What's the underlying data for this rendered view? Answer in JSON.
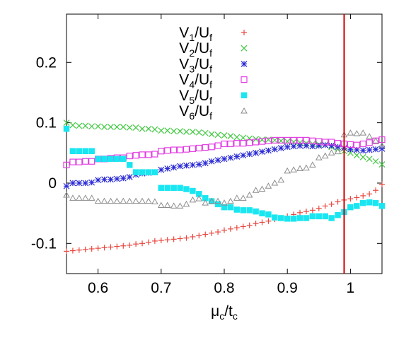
{
  "chart_data": {
    "type": "scatter",
    "title": "",
    "xlabel": {
      "main": "μ",
      "sub1": "c",
      "slash": "/t",
      "sub2": "c"
    },
    "ylabel": "",
    "xlim": [
      0.55,
      1.05
    ],
    "ylim": [
      -0.15,
      0.28
    ],
    "xticks": [
      0.6,
      0.7,
      0.8,
      0.9,
      1.0
    ],
    "xtick_labels": [
      "0.6",
      "0.7",
      "0.8",
      "0.9",
      "1"
    ],
    "yticks": [
      -0.1,
      0,
      0.1,
      0.2
    ],
    "ytick_labels": [
      "-0.1",
      "0",
      "0.1",
      "0.2"
    ],
    "grid": false,
    "legend_position": "top-center",
    "vline": {
      "x": 0.99,
      "color": "#cc0000"
    },
    "series": [
      {
        "name": "V1/Uf",
        "label": {
          "a": "V",
          "b": "1",
          "c": "/U",
          "d": "f"
        },
        "marker": "plus",
        "color": "#e8473f",
        "x": [
          0.55,
          0.56,
          0.57,
          0.58,
          0.59,
          0.6,
          0.61,
          0.62,
          0.63,
          0.64,
          0.65,
          0.66,
          0.67,
          0.68,
          0.69,
          0.7,
          0.71,
          0.72,
          0.73,
          0.74,
          0.75,
          0.76,
          0.77,
          0.78,
          0.79,
          0.8,
          0.81,
          0.82,
          0.83,
          0.84,
          0.85,
          0.86,
          0.87,
          0.88,
          0.89,
          0.9,
          0.91,
          0.92,
          0.93,
          0.94,
          0.95,
          0.96,
          0.97,
          0.98,
          0.99,
          1.0,
          1.01,
          1.02,
          1.03,
          1.04,
          1.05
        ],
        "y": [
          -0.113,
          -0.112,
          -0.111,
          -0.11,
          -0.109,
          -0.108,
          -0.107,
          -0.106,
          -0.105,
          -0.104,
          -0.103,
          -0.101,
          -0.1,
          -0.098,
          -0.096,
          -0.095,
          -0.094,
          -0.093,
          -0.092,
          -0.091,
          -0.089,
          -0.087,
          -0.085,
          -0.083,
          -0.081,
          -0.078,
          -0.076,
          -0.074,
          -0.072,
          -0.07,
          -0.067,
          -0.065,
          -0.063,
          -0.06,
          -0.058,
          -0.055,
          -0.052,
          -0.049,
          -0.047,
          -0.045,
          -0.042,
          -0.038,
          -0.035,
          -0.031,
          -0.028,
          -0.026,
          -0.024,
          -0.021,
          -0.018,
          -0.012,
          -0.002
        ]
      },
      {
        "name": "V2/Uf",
        "label": {
          "a": "V",
          "b": "2",
          "c": "/U",
          "d": "f"
        },
        "marker": "cross",
        "color": "#3fc83f",
        "x": [
          0.55,
          0.56,
          0.57,
          0.58,
          0.59,
          0.6,
          0.61,
          0.62,
          0.63,
          0.64,
          0.65,
          0.66,
          0.67,
          0.68,
          0.69,
          0.7,
          0.71,
          0.72,
          0.73,
          0.74,
          0.75,
          0.76,
          0.77,
          0.78,
          0.79,
          0.8,
          0.81,
          0.82,
          0.83,
          0.84,
          0.85,
          0.86,
          0.87,
          0.88,
          0.89,
          0.9,
          0.91,
          0.92,
          0.93,
          0.94,
          0.95,
          0.96,
          0.97,
          0.98,
          0.99,
          1.0,
          1.01,
          1.02,
          1.03,
          1.04,
          1.05
        ],
        "y": [
          0.1,
          0.096,
          0.095,
          0.095,
          0.094,
          0.094,
          0.093,
          0.093,
          0.093,
          0.093,
          0.092,
          0.092,
          0.09,
          0.09,
          0.089,
          0.087,
          0.087,
          0.086,
          0.086,
          0.085,
          0.085,
          0.084,
          0.083,
          0.081,
          0.08,
          0.079,
          0.078,
          0.076,
          0.075,
          0.074,
          0.073,
          0.072,
          0.072,
          0.071,
          0.07,
          0.069,
          0.068,
          0.067,
          0.066,
          0.065,
          0.064,
          0.063,
          0.06,
          0.057,
          0.053,
          0.05,
          0.046,
          0.043,
          0.04,
          0.036,
          0.031
        ]
      },
      {
        "name": "V3/Uf",
        "label": {
          "a": "V",
          "b": "3",
          "c": "/U",
          "d": "f"
        },
        "marker": "star",
        "color": "#2b2bd6",
        "x": [
          0.55,
          0.56,
          0.57,
          0.58,
          0.59,
          0.6,
          0.61,
          0.62,
          0.63,
          0.64,
          0.65,
          0.66,
          0.67,
          0.68,
          0.69,
          0.7,
          0.71,
          0.72,
          0.73,
          0.74,
          0.75,
          0.76,
          0.77,
          0.78,
          0.79,
          0.8,
          0.81,
          0.82,
          0.83,
          0.84,
          0.85,
          0.86,
          0.87,
          0.88,
          0.89,
          0.9,
          0.91,
          0.92,
          0.93,
          0.94,
          0.95,
          0.96,
          0.97,
          0.98,
          0.99,
          1.0,
          1.01,
          1.02,
          1.03,
          1.04,
          1.05
        ],
        "y": [
          -0.005,
          0,
          0,
          0,
          0.001,
          0.005,
          0.006,
          0.006,
          0.007,
          0.008,
          0.01,
          0.014,
          0.016,
          0.017,
          0.018,
          0.022,
          0.024,
          0.026,
          0.028,
          0.029,
          0.03,
          0.031,
          0.033,
          0.036,
          0.038,
          0.04,
          0.042,
          0.044,
          0.046,
          0.048,
          0.05,
          0.052,
          0.054,
          0.056,
          0.058,
          0.06,
          0.061,
          0.062,
          0.062,
          0.061,
          0.062,
          0.063,
          0.062,
          0.06,
          0.058,
          0.056,
          0.055,
          0.054,
          0.055,
          0.056,
          0.057
        ]
      },
      {
        "name": "V4/Uf",
        "label": {
          "a": "V",
          "b": "4",
          "c": "/U",
          "d": "f"
        },
        "marker": "square-open",
        "color": "#e23ee2",
        "x": [
          0.55,
          0.56,
          0.57,
          0.58,
          0.59,
          0.6,
          0.61,
          0.62,
          0.63,
          0.64,
          0.65,
          0.66,
          0.67,
          0.68,
          0.69,
          0.7,
          0.71,
          0.72,
          0.73,
          0.74,
          0.75,
          0.76,
          0.77,
          0.78,
          0.79,
          0.8,
          0.81,
          0.82,
          0.83,
          0.84,
          0.85,
          0.86,
          0.87,
          0.88,
          0.89,
          0.9,
          0.91,
          0.92,
          0.93,
          0.94,
          0.95,
          0.96,
          0.97,
          0.98,
          0.99,
          1.0,
          1.01,
          1.02,
          1.03,
          1.04,
          1.05
        ],
        "y": [
          0.03,
          0.035,
          0.035,
          0.036,
          0.036,
          0.04,
          0.04,
          0.041,
          0.042,
          0.042,
          0.045,
          0.046,
          0.047,
          0.047,
          0.048,
          0.053,
          0.054,
          0.055,
          0.055,
          0.056,
          0.057,
          0.058,
          0.059,
          0.06,
          0.062,
          0.065,
          0.065,
          0.066,
          0.066,
          0.067,
          0.068,
          0.069,
          0.07,
          0.071,
          0.071,
          0.071,
          0.071,
          0.071,
          0.071,
          0.07,
          0.069,
          0.068,
          0.068,
          0.066,
          0.065,
          0.064,
          0.063,
          0.065,
          0.067,
          0.07,
          0.072
        ]
      },
      {
        "name": "V5/Uf",
        "label": {
          "a": "V",
          "b": "5",
          "c": "/U",
          "d": "f"
        },
        "marker": "square-filled",
        "color": "#19e6f0",
        "x": [
          0.55,
          0.56,
          0.57,
          0.58,
          0.59,
          0.6,
          0.61,
          0.62,
          0.63,
          0.64,
          0.65,
          0.66,
          0.67,
          0.68,
          0.69,
          0.7,
          0.71,
          0.72,
          0.73,
          0.74,
          0.75,
          0.76,
          0.77,
          0.78,
          0.79,
          0.8,
          0.81,
          0.82,
          0.83,
          0.84,
          0.85,
          0.86,
          0.87,
          0.88,
          0.89,
          0.9,
          0.91,
          0.92,
          0.93,
          0.94,
          0.95,
          0.96,
          0.97,
          0.98,
          0.99,
          1.0,
          1.01,
          1.02,
          1.03,
          1.04,
          1.05
        ],
        "y": [
          0.09,
          0.053,
          0.053,
          0.053,
          0.053,
          0.04,
          0.04,
          0.04,
          0.04,
          0.04,
          0.03,
          0.018,
          0.018,
          0.018,
          0.018,
          -0.008,
          -0.008,
          -0.008,
          -0.008,
          -0.01,
          -0.013,
          -0.018,
          -0.025,
          -0.03,
          -0.035,
          -0.04,
          -0.04,
          -0.044,
          -0.045,
          -0.045,
          -0.047,
          -0.05,
          -0.052,
          -0.057,
          -0.058,
          -0.059,
          -0.059,
          -0.058,
          -0.058,
          -0.055,
          -0.055,
          -0.055,
          -0.058,
          -0.053,
          -0.048,
          -0.04,
          -0.038,
          -0.033,
          -0.032,
          -0.033,
          -0.038
        ]
      },
      {
        "name": "V6/Uf",
        "label": {
          "a": "V",
          "b": "6",
          "c": "/U",
          "d": "f"
        },
        "marker": "triangle-open",
        "color": "#8c8c8c",
        "x": [
          0.55,
          0.56,
          0.57,
          0.58,
          0.59,
          0.6,
          0.61,
          0.62,
          0.63,
          0.64,
          0.65,
          0.66,
          0.67,
          0.68,
          0.69,
          0.7,
          0.71,
          0.72,
          0.73,
          0.74,
          0.75,
          0.76,
          0.77,
          0.78,
          0.79,
          0.8,
          0.81,
          0.82,
          0.83,
          0.84,
          0.85,
          0.86,
          0.87,
          0.88,
          0.89,
          0.9,
          0.91,
          0.92,
          0.93,
          0.94,
          0.95,
          0.96,
          0.97,
          0.98,
          0.99,
          1.0,
          1.01,
          1.02,
          1.03,
          1.04,
          1.05
        ],
        "y": [
          -0.02,
          -0.025,
          -0.025,
          -0.025,
          -0.025,
          -0.03,
          -0.03,
          -0.03,
          -0.03,
          -0.03,
          -0.03,
          -0.03,
          -0.03,
          -0.03,
          -0.031,
          -0.037,
          -0.037,
          -0.038,
          -0.038,
          -0.035,
          -0.028,
          -0.026,
          -0.033,
          -0.03,
          -0.03,
          -0.033,
          -0.03,
          -0.025,
          -0.025,
          -0.02,
          -0.012,
          -0.01,
          -0.005,
          0.0,
          0.005,
          0.02,
          0.022,
          0.024,
          0.025,
          0.03,
          0.042,
          0.045,
          0.05,
          0.052,
          0.08,
          0.083,
          0.082,
          0.083,
          0.077,
          0.07,
          0.062
        ]
      }
    ]
  }
}
